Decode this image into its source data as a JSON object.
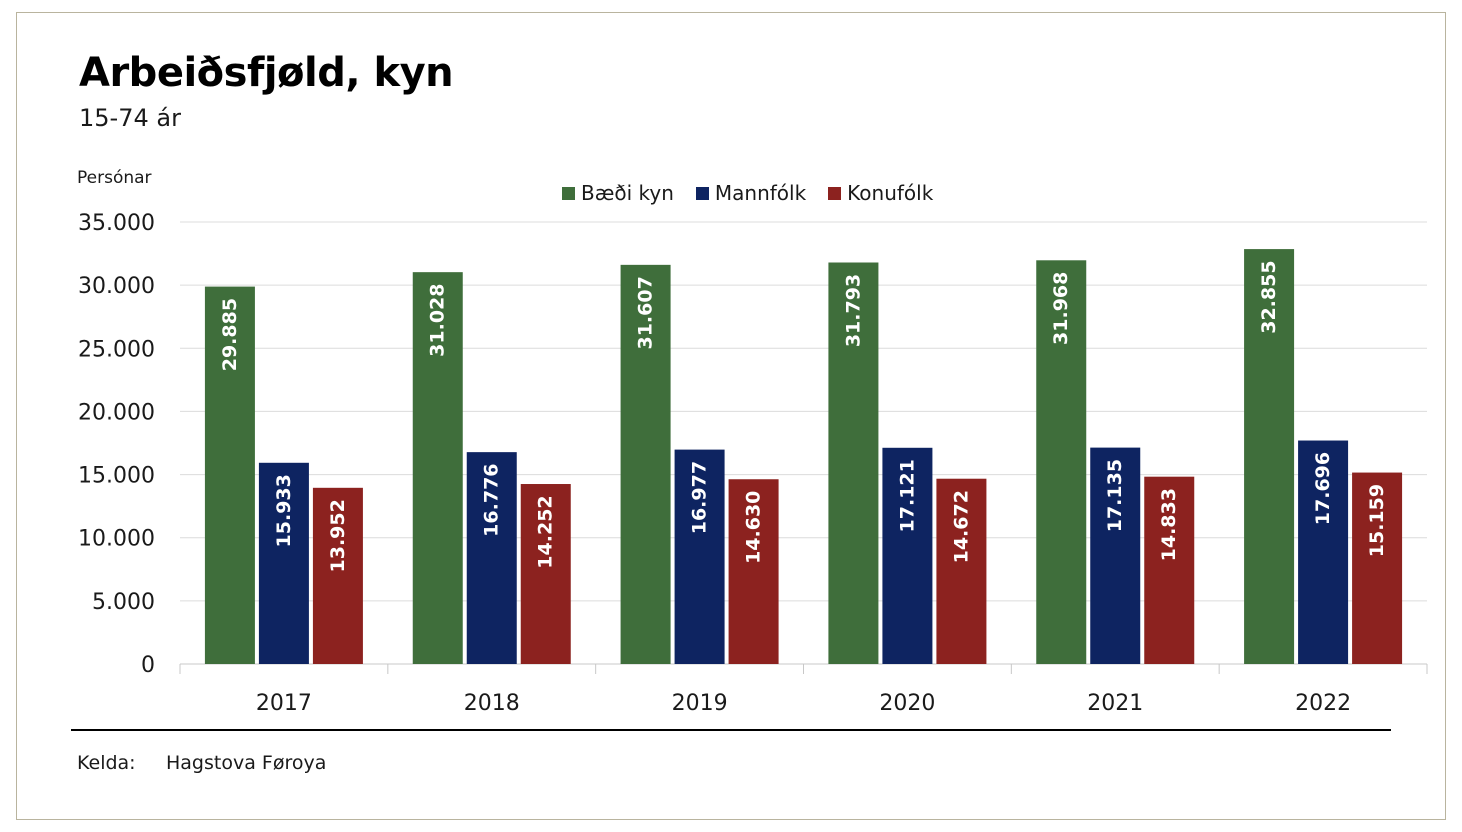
{
  "chart_data": {
    "type": "bar",
    "title": "Arbeiðsfjøld, kyn",
    "subtitle": "15-74 ár",
    "ylabel": "Persónar",
    "categories": [
      "2017",
      "2018",
      "2019",
      "2020",
      "2021",
      "2022"
    ],
    "series": [
      {
        "name": "Bæði kyn",
        "color": "#3f6e3b",
        "values": [
          29885,
          31028,
          31607,
          31793,
          31968,
          32855
        ],
        "labels": [
          "29.885",
          "31.028",
          "31.607",
          "31.793",
          "31.968",
          "32.855"
        ]
      },
      {
        "name": "Mannfólk",
        "color": "#0e2461",
        "values": [
          15933,
          16776,
          16977,
          17121,
          17135,
          17696
        ],
        "labels": [
          "15.933",
          "16.776",
          "16.977",
          "17.121",
          "17.135",
          "17.696"
        ]
      },
      {
        "name": "Konufólk",
        "color": "#8c221f",
        "values": [
          13952,
          14252,
          14630,
          14672,
          14833,
          15159
        ],
        "labels": [
          "13.952",
          "14.252",
          "14.630",
          "14.672",
          "14.833",
          "15.159"
        ]
      }
    ],
    "ylim": [
      0,
      35000
    ],
    "yticks": [
      0,
      5000,
      10000,
      15000,
      20000,
      25000,
      30000,
      35000
    ],
    "ytick_labels": [
      "0",
      "5.000",
      "10.000",
      "15.000",
      "20.000",
      "25.000",
      "30.000",
      "35.000"
    ],
    "grid": true,
    "legend_position": "top-center"
  },
  "source": {
    "label": "Kelda:",
    "value": "Hagstova Føroya"
  }
}
